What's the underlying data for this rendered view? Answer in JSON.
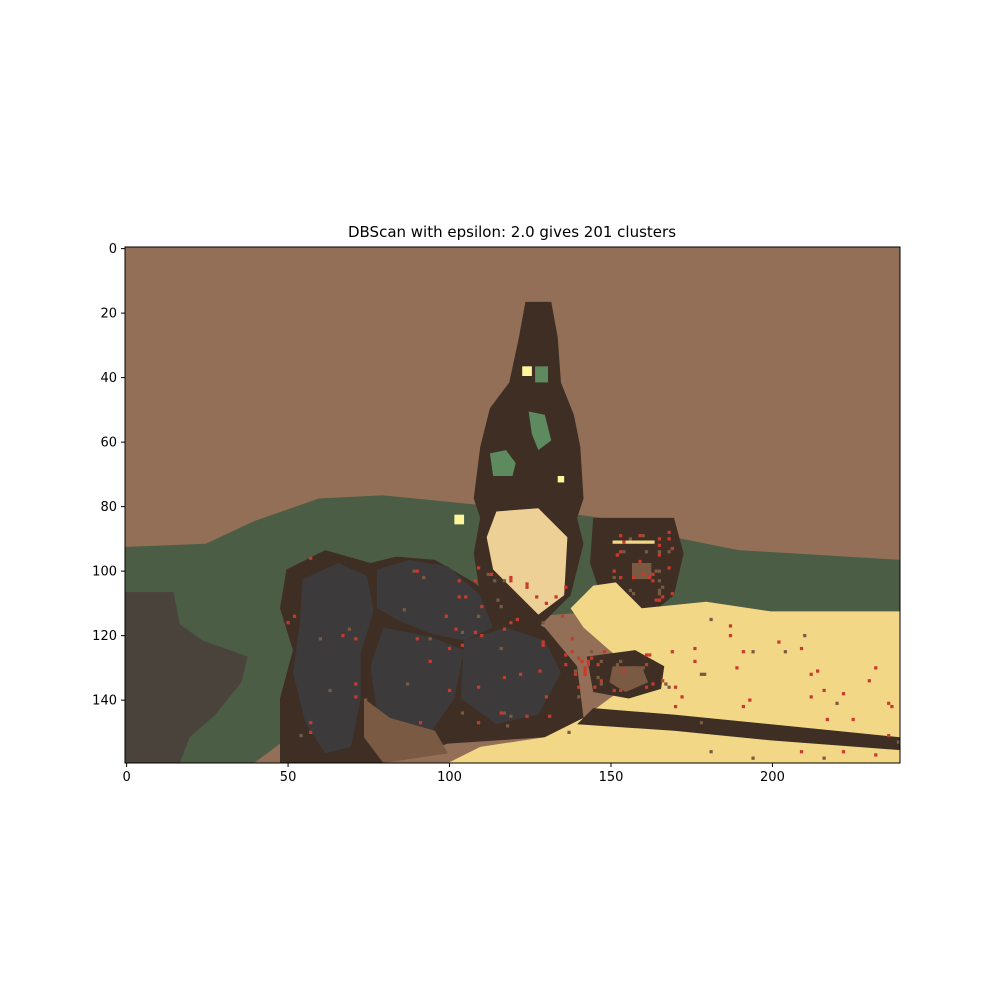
{
  "chart_data": {
    "type": "heatmap",
    "title": "DBScan with epsilon: 2.0 gives 201 clusters",
    "xlabel": "",
    "ylabel": "",
    "xlim": [
      0,
      240
    ],
    "ylim": [
      160,
      0
    ],
    "image_width": 240,
    "image_height": 160,
    "x_ticks": [
      0,
      50,
      100,
      150,
      200
    ],
    "y_ticks": [
      0,
      20,
      40,
      60,
      80,
      100,
      120,
      140
    ],
    "grid": false,
    "colors": {
      "wall": "#936f57",
      "green_cloth": "#4c5d45",
      "dark_grey_left": "#4a433c",
      "dark_brown": "#3e2e24",
      "grapes": "#3c3a3a",
      "yellow_table": "#f2d886",
      "bottle_label": "#ecd096",
      "noise_red": "#c83a2d",
      "brown_dish": "#7a5a42",
      "bottle_green": "#5d8a5e",
      "light_yellow": "#fff59a"
    },
    "regions": [
      {
        "name": "wall",
        "color": "wall",
        "points": [
          [
            0,
            0
          ],
          [
            240,
            0
          ],
          [
            240,
            97
          ],
          [
            190,
            94
          ],
          [
            170,
            90
          ],
          [
            155,
            85
          ],
          [
            140,
            83
          ],
          [
            110,
            80
          ],
          [
            80,
            77
          ],
          [
            60,
            78
          ],
          [
            40,
            85
          ],
          [
            25,
            92
          ],
          [
            0,
            93
          ]
        ]
      },
      {
        "name": "green-cloth",
        "color": "green_cloth",
        "points": [
          [
            0,
            93
          ],
          [
            25,
            92
          ],
          [
            40,
            85
          ],
          [
            60,
            78
          ],
          [
            80,
            77
          ],
          [
            110,
            80
          ],
          [
            140,
            83
          ],
          [
            155,
            85
          ],
          [
            170,
            90
          ],
          [
            190,
            94
          ],
          [
            240,
            97
          ],
          [
            240,
            113
          ],
          [
            200,
            115
          ],
          [
            160,
            112
          ],
          [
            120,
            115
          ],
          [
            60,
            145
          ],
          [
            40,
            160
          ],
          [
            0,
            160
          ]
        ]
      },
      {
        "name": "dark-left",
        "color": "dark_grey_left",
        "points": [
          [
            0,
            107
          ],
          [
            15,
            107
          ],
          [
            17,
            117
          ],
          [
            24,
            122
          ],
          [
            38,
            127
          ],
          [
            36,
            135
          ],
          [
            28,
            145
          ],
          [
            20,
            152
          ],
          [
            17,
            160
          ],
          [
            0,
            160
          ]
        ]
      },
      {
        "name": "bottle",
        "color": "dark_brown",
        "points": [
          [
            124,
            17
          ],
          [
            132,
            17
          ],
          [
            134,
            28
          ],
          [
            135,
            42
          ],
          [
            139,
            52
          ],
          [
            141,
            62
          ],
          [
            142,
            78
          ],
          [
            140,
            84
          ],
          [
            142,
            92
          ],
          [
            138,
            108
          ],
          [
            128,
            118
          ],
          [
            116,
            118
          ],
          [
            110,
            108
          ],
          [
            108,
            95
          ],
          [
            110,
            84
          ],
          [
            108,
            78
          ],
          [
            110,
            62
          ],
          [
            113,
            50
          ],
          [
            119,
            42
          ],
          [
            122,
            28
          ]
        ]
      },
      {
        "name": "goblet",
        "color": "dark_brown",
        "points": [
          [
            145,
            84
          ],
          [
            170,
            84
          ],
          [
            173,
            95
          ],
          [
            170,
            108
          ],
          [
            160,
            116
          ],
          [
            155,
            122
          ],
          [
            148,
            110
          ],
          [
            144,
            98
          ]
        ]
      },
      {
        "name": "grapes-outline",
        "color": "dark_brown",
        "points": [
          [
            50,
            100
          ],
          [
            62,
            94
          ],
          [
            76,
            98
          ],
          [
            84,
            96
          ],
          [
            96,
            97
          ],
          [
            108,
            104
          ],
          [
            118,
            112
          ],
          [
            130,
            118
          ],
          [
            140,
            130
          ],
          [
            142,
            146
          ],
          [
            130,
            152
          ],
          [
            100,
            154
          ],
          [
            80,
            160
          ],
          [
            48,
            160
          ],
          [
            48,
            140
          ],
          [
            52,
            125
          ],
          [
            48,
            112
          ]
        ]
      },
      {
        "name": "yellow-table",
        "color": "yellow_table",
        "points": [
          [
            240,
            113
          ],
          [
            240,
            160
          ],
          [
            100,
            160
          ],
          [
            110,
            155
          ],
          [
            130,
            152
          ],
          [
            142,
            146
          ],
          [
            150,
            140
          ],
          [
            160,
            133
          ],
          [
            150,
            125
          ],
          [
            142,
            118
          ],
          [
            138,
            112
          ],
          [
            145,
            105
          ],
          [
            152,
            104
          ],
          [
            160,
            112
          ],
          [
            180,
            110
          ],
          [
            200,
            113
          ]
        ]
      },
      {
        "name": "table-edge",
        "color": "dark_brown",
        "points": [
          [
            145,
            143
          ],
          [
            170,
            145
          ],
          [
            200,
            148
          ],
          [
            240,
            152
          ],
          [
            240,
            156
          ],
          [
            200,
            153
          ],
          [
            170,
            150
          ],
          [
            140,
            148
          ]
        ]
      },
      {
        "name": "brown-dish",
        "color": "dark_brown",
        "points": [
          [
            143,
            127
          ],
          [
            158,
            125
          ],
          [
            167,
            130
          ],
          [
            166,
            137
          ],
          [
            156,
            140
          ],
          [
            145,
            138
          ]
        ]
      },
      {
        "name": "dish-center",
        "color": "brown_dish",
        "points": [
          [
            151,
            130
          ],
          [
            160,
            130
          ],
          [
            162,
            135
          ],
          [
            155,
            138
          ],
          [
            150,
            135
          ]
        ]
      },
      {
        "name": "bottle-label",
        "color": "bottle_label",
        "points": [
          [
            115,
            82
          ],
          [
            128,
            81
          ],
          [
            137,
            90
          ],
          [
            136,
            108
          ],
          [
            128,
            114
          ],
          [
            120,
            106
          ],
          [
            114,
            100
          ],
          [
            112,
            90
          ]
        ]
      },
      {
        "name": "grape-cluster-1",
        "color": "grapes",
        "points": [
          [
            55,
            103
          ],
          [
            66,
            98
          ],
          [
            75,
            102
          ],
          [
            77,
            113
          ],
          [
            73,
            126
          ],
          [
            73,
            140
          ],
          [
            70,
            155
          ],
          [
            62,
            157
          ],
          [
            56,
            148
          ],
          [
            52,
            132
          ],
          [
            54,
            118
          ]
        ]
      },
      {
        "name": "grape-cluster-2",
        "color": "grapes",
        "points": [
          [
            78,
            100
          ],
          [
            88,
            97
          ],
          [
            100,
            99
          ],
          [
            110,
            108
          ],
          [
            114,
            118
          ],
          [
            105,
            122
          ],
          [
            95,
            120
          ],
          [
            85,
            116
          ],
          [
            78,
            112
          ]
        ]
      },
      {
        "name": "grape-cluster-3",
        "color": "grapes",
        "points": [
          [
            80,
            118
          ],
          [
            95,
            121
          ],
          [
            105,
            125
          ],
          [
            102,
            140
          ],
          [
            95,
            150
          ],
          [
            85,
            152
          ],
          [
            78,
            144
          ],
          [
            76,
            130
          ]
        ]
      },
      {
        "name": "grape-cluster-4",
        "color": "grapes",
        "points": [
          [
            105,
            122
          ],
          [
            118,
            118
          ],
          [
            130,
            122
          ],
          [
            135,
            132
          ],
          [
            128,
            145
          ],
          [
            115,
            148
          ],
          [
            104,
            140
          ]
        ]
      },
      {
        "name": "grape-stem",
        "color": "brown_dish",
        "points": [
          [
            74,
            140
          ],
          [
            82,
            146
          ],
          [
            96,
            150
          ],
          [
            100,
            157
          ],
          [
            80,
            160
          ],
          [
            74,
            152
          ]
        ]
      },
      {
        "name": "goblet-rim",
        "color": "yellow_table",
        "points": [
          [
            151,
            91
          ],
          [
            164,
            91
          ],
          [
            164,
            92
          ],
          [
            151,
            92
          ]
        ]
      },
      {
        "name": "goblet-highlight",
        "color": "brown_dish",
        "points": [
          [
            157,
            98
          ],
          [
            163,
            98
          ],
          [
            163,
            103
          ],
          [
            157,
            103
          ]
        ]
      },
      {
        "name": "bottle-green-1",
        "color": "bottle_green",
        "points": [
          [
            113,
            64
          ],
          [
            118,
            63
          ],
          [
            121,
            67
          ],
          [
            120,
            71
          ],
          [
            114,
            71
          ]
        ]
      },
      {
        "name": "bottle-green-2",
        "color": "bottle_green",
        "points": [
          [
            125,
            51
          ],
          [
            130,
            52
          ],
          [
            132,
            60
          ],
          [
            128,
            63
          ],
          [
            126,
            58
          ]
        ]
      },
      {
        "name": "bottle-green-3",
        "color": "bottle_green",
        "points": [
          [
            127,
            37
          ],
          [
            131,
            37
          ],
          [
            131,
            42
          ],
          [
            127,
            42
          ]
        ]
      },
      {
        "name": "bottle-light-1",
        "color": "light_yellow",
        "points": [
          [
            123,
            37
          ],
          [
            126,
            37
          ],
          [
            126,
            40
          ],
          [
            123,
            40
          ]
        ]
      },
      {
        "name": "bottle-light-2",
        "color": "light_yellow",
        "points": [
          [
            134,
            71
          ],
          [
            136,
            71
          ],
          [
            136,
            73
          ],
          [
            134,
            73
          ]
        ]
      },
      {
        "name": "label-light",
        "color": "light_yellow",
        "points": [
          [
            102,
            83
          ],
          [
            105,
            83
          ],
          [
            105,
            86
          ],
          [
            102,
            86
          ]
        ]
      }
    ]
  }
}
